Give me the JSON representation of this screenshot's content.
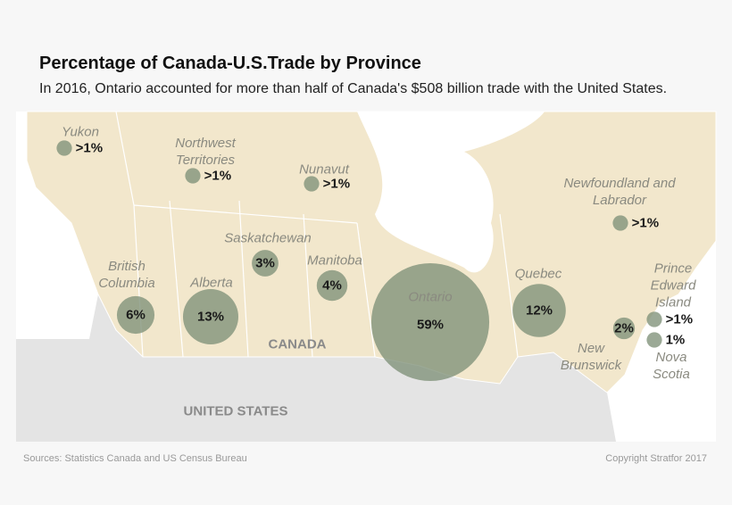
{
  "header": {
    "title": "Percentage of Canada-U.S.Trade by Province",
    "subtitle": "In 2016, Ontario accounted for more than half of Canada's $508 billion trade with the United States."
  },
  "map": {
    "regions": [
      {
        "name": "Yukon",
        "value": 1,
        "value_label": ">1%"
      },
      {
        "name": "Northwest Territories",
        "value": 1,
        "value_label": ">1%"
      },
      {
        "name": "Nunavut",
        "value": 1,
        "value_label": ">1%"
      },
      {
        "name": "Newfoundland and Labrador",
        "value": 1,
        "value_label": ">1%"
      },
      {
        "name": "Saskatchewan",
        "value": 3,
        "value_label": "3%"
      },
      {
        "name": "Manitoba",
        "value": 4,
        "value_label": "4%"
      },
      {
        "name": "British Columbia",
        "value": 6,
        "value_label": "6%"
      },
      {
        "name": "Alberta",
        "value": 13,
        "value_label": "13%"
      },
      {
        "name": "Ontario",
        "value": 59,
        "value_label": "59%"
      },
      {
        "name": "Quebec",
        "value": 12,
        "value_label": "12%"
      },
      {
        "name": "New Brunswick",
        "value": 2,
        "value_label": "2%"
      },
      {
        "name": "Prince Edward Island",
        "value": 1,
        "value_label": ">1%"
      },
      {
        "name": "Nova Scotia",
        "value": 1,
        "value_label": "1%"
      }
    ],
    "country_labels": [
      "CANADA",
      "UNITED STATES"
    ]
  },
  "footer": {
    "source": "Sources: Statistics Canada and US Census Bureau",
    "copyright": "Copyright Stratfor 2017"
  }
}
